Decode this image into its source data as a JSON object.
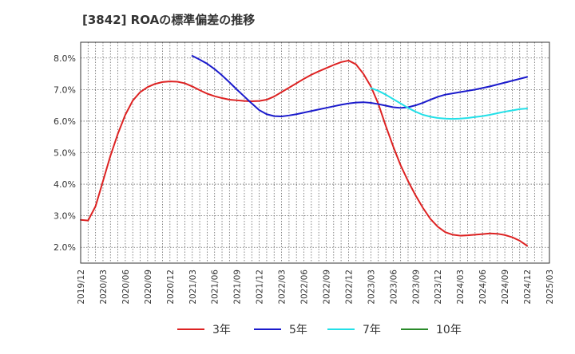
{
  "chart_data": {
    "type": "line",
    "title": "[3842]  ROAの標準偏差の推移",
    "xlabel": "",
    "ylabel": "",
    "ylim": [
      1.5,
      8.5
    ],
    "y_ticks": [
      2.0,
      3.0,
      4.0,
      5.0,
      6.0,
      7.0,
      8.0
    ],
    "y_tick_labels": [
      "2.0%",
      "3.0%",
      "4.0%",
      "5.0%",
      "6.0%",
      "7.0%",
      "8.0%"
    ],
    "x_range": [
      "2019-12",
      "2025-03"
    ],
    "x_tick_labels": [
      "2019/12",
      "2020/03",
      "2020/06",
      "2020/09",
      "2020/12",
      "2021/03",
      "2021/06",
      "2021/09",
      "2021/12",
      "2022/03",
      "2022/06",
      "2022/09",
      "2022/12",
      "2023/03",
      "2023/06",
      "2023/09",
      "2023/12",
      "2024/03",
      "2024/06",
      "2024/09",
      "2024/12",
      "2025/03"
    ],
    "grid": true,
    "legend_position": "bottom",
    "series": [
      {
        "name": "3年",
        "color": "#dd2222",
        "points": [
          [
            "2019-12",
            2.87
          ],
          [
            "2020-01",
            2.85
          ],
          [
            "2020-02",
            3.3
          ],
          [
            "2020-03",
            4.1
          ],
          [
            "2020-04",
            4.9
          ],
          [
            "2020-05",
            5.6
          ],
          [
            "2020-06",
            6.2
          ],
          [
            "2020-07",
            6.65
          ],
          [
            "2020-08",
            6.92
          ],
          [
            "2020-09",
            7.08
          ],
          [
            "2020-10",
            7.18
          ],
          [
            "2020-11",
            7.24
          ],
          [
            "2020-12",
            7.26
          ],
          [
            "2021-01",
            7.25
          ],
          [
            "2021-02",
            7.2
          ],
          [
            "2021-03",
            7.1
          ],
          [
            "2021-04",
            6.98
          ],
          [
            "2021-05",
            6.87
          ],
          [
            "2021-06",
            6.79
          ],
          [
            "2021-07",
            6.73
          ],
          [
            "2021-08",
            6.68
          ],
          [
            "2021-09",
            6.66
          ],
          [
            "2021-10",
            6.64
          ],
          [
            "2021-11",
            6.63
          ],
          [
            "2021-12",
            6.64
          ],
          [
            "2022-01",
            6.68
          ],
          [
            "2022-02",
            6.78
          ],
          [
            "2022-03",
            6.92
          ],
          [
            "2022-04",
            7.06
          ],
          [
            "2022-05",
            7.2
          ],
          [
            "2022-06",
            7.34
          ],
          [
            "2022-07",
            7.47
          ],
          [
            "2022-08",
            7.58
          ],
          [
            "2022-09",
            7.68
          ],
          [
            "2022-10",
            7.78
          ],
          [
            "2022-11",
            7.87
          ],
          [
            "2022-12",
            7.92
          ],
          [
            "2023-01",
            7.8
          ],
          [
            "2023-02",
            7.5
          ],
          [
            "2023-03",
            7.1
          ],
          [
            "2023-04",
            6.55
          ],
          [
            "2023-05",
            5.85
          ],
          [
            "2023-06",
            5.2
          ],
          [
            "2023-07",
            4.6
          ],
          [
            "2023-08",
            4.1
          ],
          [
            "2023-09",
            3.65
          ],
          [
            "2023-10",
            3.25
          ],
          [
            "2023-11",
            2.9
          ],
          [
            "2023-12",
            2.65
          ],
          [
            "2024-01",
            2.48
          ],
          [
            "2024-02",
            2.4
          ],
          [
            "2024-03",
            2.37
          ],
          [
            "2024-04",
            2.38
          ],
          [
            "2024-05",
            2.4
          ],
          [
            "2024-06",
            2.42
          ],
          [
            "2024-07",
            2.44
          ],
          [
            "2024-08",
            2.43
          ],
          [
            "2024-09",
            2.39
          ],
          [
            "2024-10",
            2.32
          ],
          [
            "2024-11",
            2.21
          ],
          [
            "2024-12",
            2.05
          ]
        ]
      },
      {
        "name": "5年",
        "color": "#1a1acc",
        "points": [
          [
            "2021-03",
            8.07
          ],
          [
            "2021-04",
            7.95
          ],
          [
            "2021-05",
            7.82
          ],
          [
            "2021-06",
            7.65
          ],
          [
            "2021-07",
            7.45
          ],
          [
            "2021-08",
            7.23
          ],
          [
            "2021-09",
            7.0
          ],
          [
            "2021-10",
            6.78
          ],
          [
            "2021-11",
            6.56
          ],
          [
            "2021-12",
            6.35
          ],
          [
            "2022-01",
            6.22
          ],
          [
            "2022-02",
            6.16
          ],
          [
            "2022-03",
            6.15
          ],
          [
            "2022-04",
            6.18
          ],
          [
            "2022-05",
            6.22
          ],
          [
            "2022-06",
            6.27
          ],
          [
            "2022-07",
            6.32
          ],
          [
            "2022-08",
            6.37
          ],
          [
            "2022-09",
            6.42
          ],
          [
            "2022-10",
            6.47
          ],
          [
            "2022-11",
            6.52
          ],
          [
            "2022-12",
            6.56
          ],
          [
            "2023-01",
            6.59
          ],
          [
            "2023-02",
            6.6
          ],
          [
            "2023-03",
            6.58
          ],
          [
            "2023-04",
            6.54
          ],
          [
            "2023-05",
            6.49
          ],
          [
            "2023-06",
            6.44
          ],
          [
            "2023-07",
            6.42
          ],
          [
            "2023-08",
            6.44
          ],
          [
            "2023-09",
            6.5
          ],
          [
            "2023-10",
            6.58
          ],
          [
            "2023-11",
            6.68
          ],
          [
            "2023-12",
            6.77
          ],
          [
            "2024-01",
            6.84
          ],
          [
            "2024-02",
            6.88
          ],
          [
            "2024-03",
            6.92
          ],
          [
            "2024-04",
            6.96
          ],
          [
            "2024-05",
            7.0
          ],
          [
            "2024-06",
            7.05
          ],
          [
            "2024-07",
            7.1
          ],
          [
            "2024-08",
            7.16
          ],
          [
            "2024-09",
            7.22
          ],
          [
            "2024-10",
            7.28
          ],
          [
            "2024-11",
            7.34
          ],
          [
            "2024-12",
            7.4
          ]
        ]
      },
      {
        "name": "7年",
        "color": "#22e0e8",
        "points": [
          [
            "2023-03",
            7.05
          ],
          [
            "2023-04",
            6.96
          ],
          [
            "2023-05",
            6.84
          ],
          [
            "2023-06",
            6.7
          ],
          [
            "2023-07",
            6.56
          ],
          [
            "2023-08",
            6.42
          ],
          [
            "2023-09",
            6.3
          ],
          [
            "2023-10",
            6.2
          ],
          [
            "2023-11",
            6.14
          ],
          [
            "2023-12",
            6.1
          ],
          [
            "2024-01",
            6.08
          ],
          [
            "2024-02",
            6.07
          ],
          [
            "2024-03",
            6.08
          ],
          [
            "2024-04",
            6.1
          ],
          [
            "2024-05",
            6.13
          ],
          [
            "2024-06",
            6.16
          ],
          [
            "2024-07",
            6.2
          ],
          [
            "2024-08",
            6.25
          ],
          [
            "2024-09",
            6.3
          ],
          [
            "2024-10",
            6.34
          ],
          [
            "2024-11",
            6.38
          ],
          [
            "2024-12",
            6.4
          ]
        ]
      },
      {
        "name": "10年",
        "color": "#2a8a2a",
        "points": []
      }
    ]
  }
}
